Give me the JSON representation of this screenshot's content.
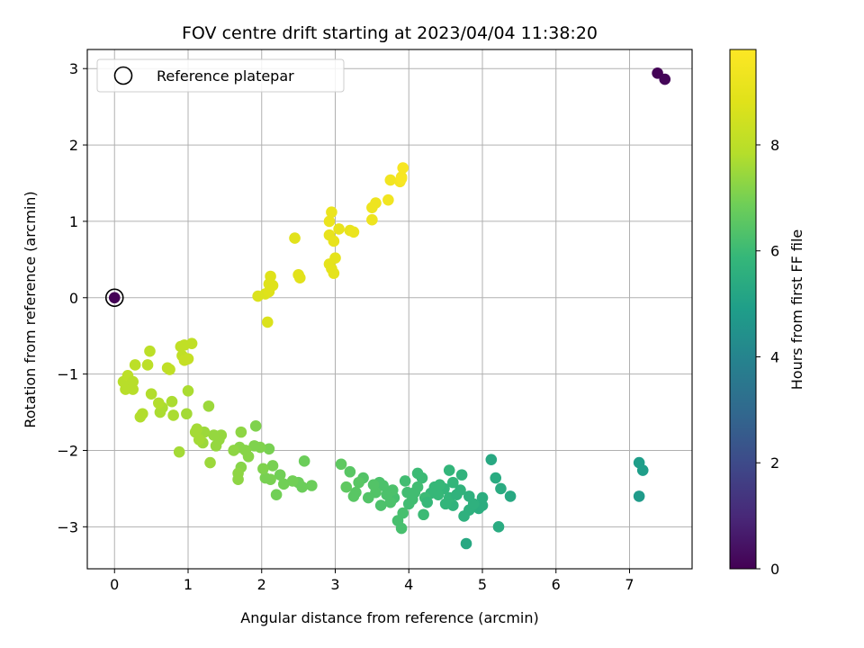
{
  "chart_data": {
    "type": "scatter",
    "title": "FOV centre drift starting at 2023/04/04 11:38:20",
    "xlabel": "Angular distance from reference (arcmin)",
    "ylabel": "Rotation from reference (arcmin)",
    "xlim": [
      -0.37,
      7.85
    ],
    "ylim": [
      -3.55,
      3.25
    ],
    "xticks": [
      0,
      1,
      2,
      3,
      4,
      5,
      6,
      7
    ],
    "yticks": [
      -3,
      -2,
      -1,
      0,
      1,
      2,
      3
    ],
    "xtick_labels": [
      "0",
      "1",
      "2",
      "3",
      "4",
      "5",
      "6",
      "7"
    ],
    "ytick_labels": [
      "−3",
      "−2",
      "−1",
      "0",
      "1",
      "2",
      "3"
    ],
    "grid": true,
    "legend": {
      "position": "top-left",
      "entries": [
        "Reference platepar"
      ]
    },
    "reference_point": {
      "x": 0,
      "y": 0,
      "hours": 0.05
    },
    "colorbar": {
      "label": "Hours from first FF file",
      "colormap": "viridis",
      "range": [
        0,
        9.8
      ],
      "ticks": [
        0,
        2,
        4,
        6,
        8
      ],
      "tick_labels": [
        "0",
        "2",
        "4",
        "6",
        "8"
      ]
    },
    "series": [
      {
        "columns": [
          "x",
          "y",
          "hours"
        ],
        "points": [
          [
            7.38,
            2.94,
            0.05
          ],
          [
            7.48,
            2.86,
            0.1
          ],
          [
            7.13,
            -2.16,
            4.9
          ],
          [
            7.18,
            -2.26,
            4.9
          ],
          [
            7.13,
            -2.6,
            4.8
          ],
          [
            4.78,
            -3.22,
            5.3
          ],
          [
            5.12,
            -2.12,
            5.3
          ],
          [
            5.38,
            -2.6,
            5.3
          ],
          [
            5.25,
            -2.5,
            5.4
          ],
          [
            5.18,
            -2.36,
            5.4
          ],
          [
            5.22,
            -3.0,
            5.4
          ],
          [
            5.0,
            -2.62,
            5.5
          ],
          [
            5.0,
            -2.72,
            5.5
          ],
          [
            4.95,
            -2.76,
            5.5
          ],
          [
            4.82,
            -2.6,
            5.6
          ],
          [
            4.82,
            -2.78,
            5.6
          ],
          [
            4.75,
            -2.86,
            5.6
          ],
          [
            4.72,
            -2.32,
            5.7
          ],
          [
            4.7,
            -2.52,
            5.7
          ],
          [
            4.6,
            -2.72,
            5.7
          ],
          [
            4.55,
            -2.26,
            5.8
          ],
          [
            4.55,
            -2.62,
            5.8
          ],
          [
            4.6,
            -2.42,
            5.8
          ],
          [
            4.48,
            -2.5,
            5.8
          ],
          [
            4.5,
            -2.7,
            5.8
          ],
          [
            4.4,
            -2.58,
            5.9
          ],
          [
            4.35,
            -2.48,
            5.9
          ],
          [
            4.3,
            -2.56,
            5.9
          ],
          [
            4.22,
            -2.62,
            6.0
          ],
          [
            4.2,
            -2.84,
            6.0
          ],
          [
            4.18,
            -2.36,
            6.0
          ],
          [
            4.12,
            -2.3,
            6.0
          ],
          [
            4.12,
            -2.48,
            6.1
          ],
          [
            4.05,
            -2.64,
            6.1
          ],
          [
            4.0,
            -2.7,
            6.1
          ],
          [
            3.98,
            -2.55,
            6.1
          ],
          [
            3.95,
            -2.4,
            6.1
          ],
          [
            3.92,
            -2.82,
            6.2
          ],
          [
            3.9,
            -3.02,
            6.2
          ],
          [
            3.85,
            -2.92,
            6.2
          ],
          [
            3.8,
            -2.62,
            6.2
          ],
          [
            3.78,
            -2.52,
            6.3
          ],
          [
            3.75,
            -2.68,
            6.3
          ],
          [
            3.7,
            -2.58,
            6.3
          ],
          [
            3.65,
            -2.46,
            6.3
          ],
          [
            3.62,
            -2.72,
            6.3
          ],
          [
            3.6,
            -2.42,
            6.3
          ],
          [
            3.55,
            -2.55,
            6.4
          ],
          [
            3.52,
            -2.45,
            6.4
          ],
          [
            3.45,
            -2.62,
            6.4
          ],
          [
            3.38,
            -2.36,
            6.4
          ],
          [
            3.32,
            -2.42,
            6.5
          ],
          [
            3.28,
            -2.55,
            6.5
          ],
          [
            3.25,
            -2.6,
            6.5
          ],
          [
            3.2,
            -2.28,
            6.5
          ],
          [
            3.15,
            -2.48,
            6.6
          ],
          [
            3.08,
            -2.18,
            6.6
          ],
          [
            4.25,
            -2.68,
            5.9
          ],
          [
            4.42,
            -2.45,
            5.9
          ],
          [
            4.65,
            -2.58,
            5.7
          ],
          [
            4.88,
            -2.7,
            5.6
          ],
          [
            4.08,
            -2.55,
            6.1
          ],
          [
            2.68,
            -2.46,
            6.8
          ],
          [
            2.55,
            -2.48,
            6.8
          ],
          [
            2.58,
            -2.14,
            6.8
          ],
          [
            2.5,
            -2.42,
            6.8
          ],
          [
            2.42,
            -2.4,
            6.9
          ],
          [
            2.3,
            -2.44,
            6.9
          ],
          [
            2.25,
            -2.32,
            6.9
          ],
          [
            2.2,
            -2.58,
            6.9
          ],
          [
            2.15,
            -2.2,
            7.0
          ],
          [
            2.12,
            -2.38,
            7.0
          ],
          [
            2.1,
            -1.98,
            7.0
          ],
          [
            2.05,
            -2.36,
            7.0
          ],
          [
            2.02,
            -2.24,
            7.1
          ],
          [
            1.98,
            -1.96,
            7.1
          ],
          [
            1.92,
            -1.68,
            7.1
          ],
          [
            1.9,
            -1.94,
            7.1
          ],
          [
            1.82,
            -2.08,
            7.2
          ],
          [
            1.78,
            -2.0,
            7.2
          ],
          [
            1.72,
            -2.22,
            7.2
          ],
          [
            1.7,
            -1.96,
            7.2
          ],
          [
            1.68,
            -2.3,
            7.3
          ],
          [
            1.68,
            -2.38,
            7.3
          ],
          [
            1.62,
            -2.0,
            7.3
          ],
          [
            1.72,
            -1.76,
            7.3
          ],
          [
            1.45,
            -1.8,
            7.4
          ],
          [
            1.42,
            -1.86,
            7.4
          ],
          [
            1.38,
            -1.94,
            7.4
          ],
          [
            1.35,
            -1.8,
            7.4
          ],
          [
            1.3,
            -2.16,
            7.5
          ],
          [
            1.28,
            -1.42,
            7.5
          ],
          [
            1.22,
            -1.76,
            7.5
          ],
          [
            1.2,
            -1.9,
            7.5
          ],
          [
            1.15,
            -1.86,
            7.6
          ],
          [
            1.12,
            -1.72,
            7.6
          ],
          [
            1.1,
            -1.76,
            7.6
          ],
          [
            0.88,
            -2.02,
            7.6
          ],
          [
            0.98,
            -1.52,
            7.6
          ],
          [
            1.0,
            -1.22,
            7.7
          ],
          [
            0.8,
            -1.54,
            7.7
          ],
          [
            0.78,
            -1.36,
            7.7
          ],
          [
            0.65,
            -1.44,
            7.7
          ],
          [
            0.62,
            -1.5,
            7.7
          ],
          [
            0.6,
            -1.38,
            7.8
          ],
          [
            0.5,
            -1.26,
            7.8
          ],
          [
            0.38,
            -1.52,
            7.8
          ],
          [
            0.35,
            -1.56,
            7.8
          ],
          [
            0.25,
            -1.2,
            7.9
          ],
          [
            0.2,
            -1.16,
            7.9
          ],
          [
            0.15,
            -1.2,
            7.9
          ],
          [
            0.12,
            -1.1,
            7.9
          ],
          [
            0.18,
            -1.02,
            8.0
          ],
          [
            0.28,
            -0.88,
            8.0
          ],
          [
            0.45,
            -0.88,
            8.0
          ],
          [
            0.48,
            -0.7,
            8.0
          ],
          [
            0.72,
            -0.92,
            8.1
          ],
          [
            0.75,
            -0.94,
            8.1
          ],
          [
            0.9,
            -0.64,
            8.1
          ],
          [
            0.95,
            -0.62,
            8.1
          ],
          [
            1.05,
            -0.6,
            8.1
          ],
          [
            0.92,
            -0.76,
            8.1
          ],
          [
            0.95,
            -0.82,
            8.2
          ],
          [
            1.0,
            -0.8,
            8.2
          ],
          [
            0.25,
            -1.1,
            7.9
          ],
          [
            2.08,
            -0.32,
            8.7
          ],
          [
            1.95,
            0.02,
            8.7
          ],
          [
            2.05,
            0.05,
            8.7
          ],
          [
            2.1,
            0.08,
            8.8
          ],
          [
            2.15,
            0.16,
            8.8
          ],
          [
            2.12,
            0.28,
            8.8
          ],
          [
            2.1,
            0.18,
            8.8
          ],
          [
            2.5,
            0.3,
            8.9
          ],
          [
            2.52,
            0.26,
            8.9
          ],
          [
            2.45,
            0.78,
            8.9
          ],
          [
            2.92,
            0.44,
            9.0
          ],
          [
            2.95,
            0.38,
            9.0
          ],
          [
            2.98,
            0.32,
            9.0
          ],
          [
            3.0,
            0.52,
            9.0
          ],
          [
            2.92,
            0.82,
            9.1
          ],
          [
            2.98,
            0.74,
            9.1
          ],
          [
            3.05,
            0.9,
            9.1
          ],
          [
            3.2,
            0.88,
            9.1
          ],
          [
            3.25,
            0.86,
            9.2
          ],
          [
            2.92,
            1.0,
            9.2
          ],
          [
            2.95,
            1.12,
            9.2
          ],
          [
            3.5,
            1.02,
            9.3
          ],
          [
            3.5,
            1.18,
            9.3
          ],
          [
            3.55,
            1.24,
            9.3
          ],
          [
            3.72,
            1.28,
            9.4
          ],
          [
            3.75,
            1.54,
            9.4
          ],
          [
            3.88,
            1.52,
            9.5
          ],
          [
            3.9,
            1.58,
            9.5
          ],
          [
            3.92,
            1.7,
            9.6
          ],
          [
            3.9,
            1.56,
            9.6
          ]
        ]
      }
    ]
  }
}
